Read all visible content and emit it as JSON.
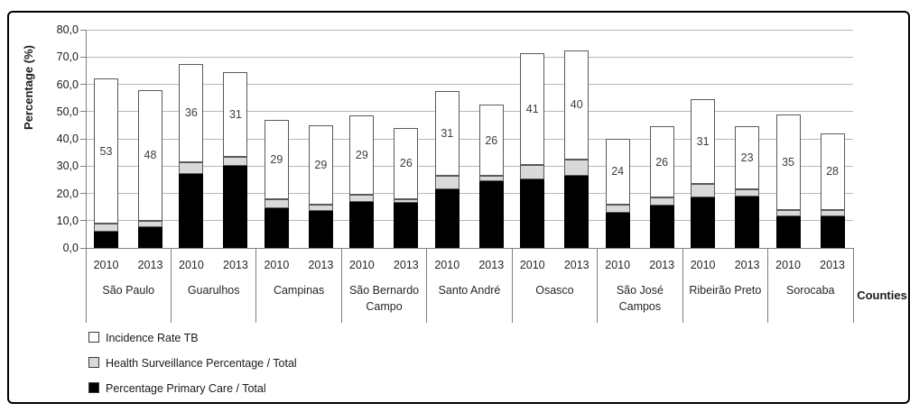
{
  "chart_data": {
    "type": "bar",
    "stacked": true,
    "ylabel": "Percentage (%)",
    "xlabel": "Counties",
    "ylim": [
      0,
      80
    ],
    "ytick_step": 10,
    "ytick_labels": [
      "80,0",
      "70,0",
      "60,0",
      "50,0",
      "40,0",
      "30,0",
      "20,0",
      "10,0",
      "0,0"
    ],
    "grid": true,
    "legend_position": "bottom-left",
    "colors": {
      "primary_care": "#000000",
      "health_surveillance": "#d9d9d9",
      "incidence_rate_tb": "#ffffff",
      "segment_border": "#595959",
      "gridline": "#b8b8b8",
      "axis": "#7f7f7f"
    },
    "series_order_bottom_to_top": [
      "primary_care",
      "health_surveillance",
      "incidence_rate_tb"
    ],
    "legend": [
      {
        "key": "incidence_rate_tb",
        "label": "Incidence Rate TB",
        "color": "#ffffff"
      },
      {
        "key": "health_surveillance",
        "label": "Health Surveillance Percentage / Total",
        "color": "#d9d9d9"
      },
      {
        "key": "primary_care",
        "label": "Percentage Primary Care / Total",
        "color": "#000000"
      }
    ],
    "groups": [
      {
        "county": "São Paulo",
        "bars": [
          {
            "year": "2010",
            "primary_care": 6,
            "health_surveillance": 3,
            "incidence_rate_tb": 53,
            "label": "53"
          },
          {
            "year": "2013",
            "primary_care": 7.5,
            "health_surveillance": 2.5,
            "incidence_rate_tb": 48,
            "label": "48"
          }
        ]
      },
      {
        "county": "Guarulhos",
        "bars": [
          {
            "year": "2010",
            "primary_care": 27,
            "health_surveillance": 4.5,
            "incidence_rate_tb": 36,
            "label": "36"
          },
          {
            "year": "2013",
            "primary_care": 30,
            "health_surveillance": 3.5,
            "incidence_rate_tb": 31,
            "label": "31"
          }
        ]
      },
      {
        "county": "Campinas",
        "bars": [
          {
            "year": "2010",
            "primary_care": 14.5,
            "health_surveillance": 3.5,
            "incidence_rate_tb": 29,
            "label": "29"
          },
          {
            "year": "2013",
            "primary_care": 13.5,
            "health_surveillance": 2.5,
            "incidence_rate_tb": 29,
            "label": "29"
          }
        ]
      },
      {
        "county": "São Bernardo Campo",
        "bars": [
          {
            "year": "2010",
            "primary_care": 17,
            "health_surveillance": 2.5,
            "incidence_rate_tb": 29,
            "label": "29"
          },
          {
            "year": "2013",
            "primary_care": 16.5,
            "health_surveillance": 1.5,
            "incidence_rate_tb": 26,
            "label": "26"
          }
        ]
      },
      {
        "county": "Santo André",
        "bars": [
          {
            "year": "2010",
            "primary_care": 21.5,
            "health_surveillance": 5,
            "incidence_rate_tb": 31,
            "label": "31"
          },
          {
            "year": "2013",
            "primary_care": 24.5,
            "health_surveillance": 2,
            "incidence_rate_tb": 26,
            "label": "26"
          }
        ]
      },
      {
        "county": "Osasco",
        "bars": [
          {
            "year": "2010",
            "primary_care": 25,
            "health_surveillance": 5.5,
            "incidence_rate_tb": 41,
            "label": "41"
          },
          {
            "year": "2013",
            "primary_care": 26.5,
            "health_surveillance": 6,
            "incidence_rate_tb": 40,
            "label": "40"
          }
        ]
      },
      {
        "county": "São José Campos",
        "bars": [
          {
            "year": "2010",
            "primary_care": 13,
            "health_surveillance": 3,
            "incidence_rate_tb": 24,
            "label": "24"
          },
          {
            "year": "2013",
            "primary_care": 15.5,
            "health_surveillance": 3,
            "incidence_rate_tb": 26,
            "label": "26"
          }
        ]
      },
      {
        "county": "Ribeirão Preto",
        "bars": [
          {
            "year": "2010",
            "primary_care": 18.5,
            "health_surveillance": 5,
            "incidence_rate_tb": 31,
            "label": "31"
          },
          {
            "year": "2013",
            "primary_care": 19,
            "health_surveillance": 2.5,
            "incidence_rate_tb": 23,
            "label": "23"
          }
        ]
      },
      {
        "county": "Sorocaba",
        "bars": [
          {
            "year": "2010",
            "primary_care": 11.5,
            "health_surveillance": 2.5,
            "incidence_rate_tb": 35,
            "label": "35"
          },
          {
            "year": "2013",
            "primary_care": 11.5,
            "health_surveillance": 2.5,
            "incidence_rate_tb": 28,
            "label": "28"
          }
        ]
      }
    ]
  }
}
